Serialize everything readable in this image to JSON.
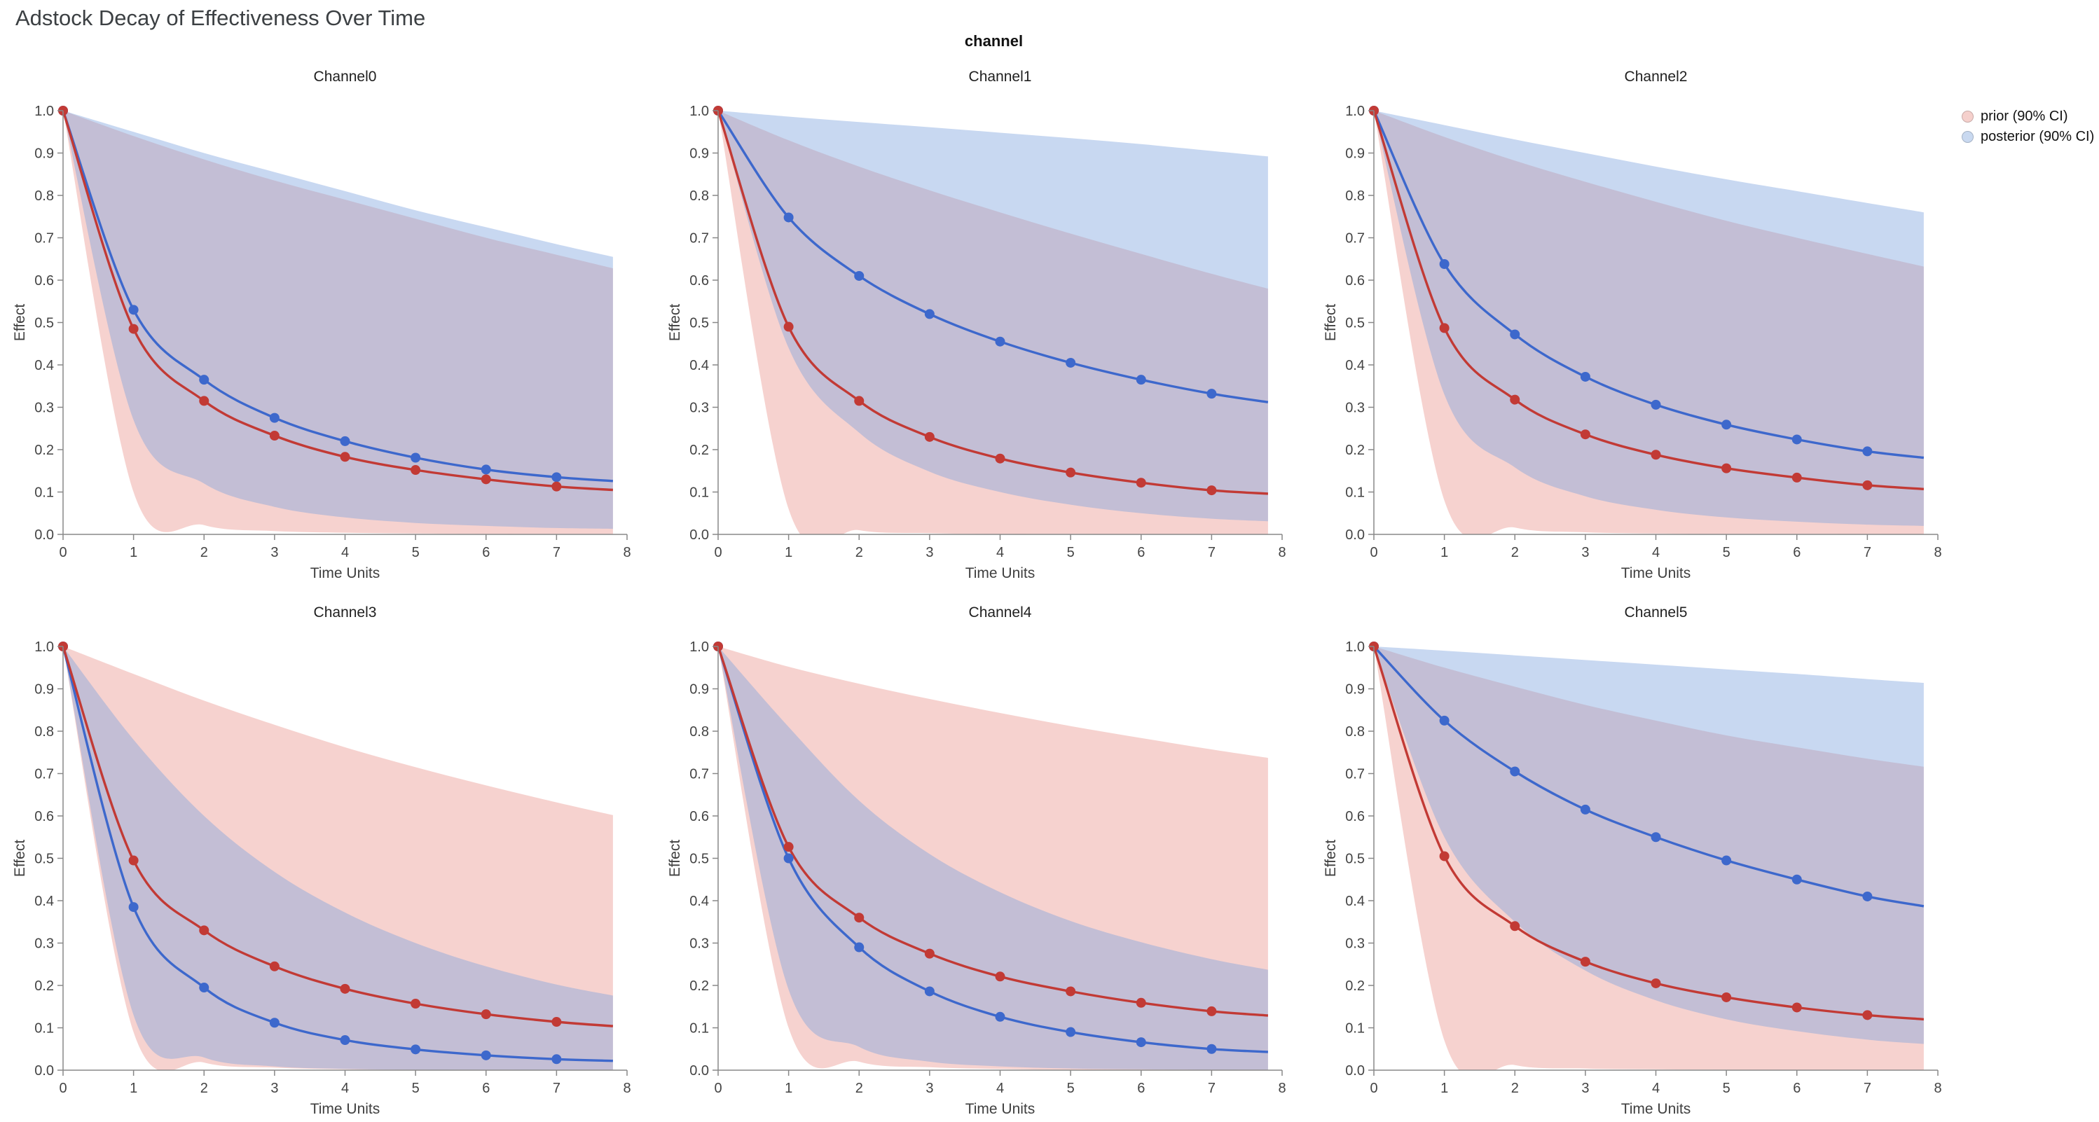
{
  "title": "Adstock Decay of Effectiveness Over Time",
  "facet_header": "channel",
  "legend": {
    "items": [
      {
        "label": "prior (90% CI)",
        "color": "#f5d0cc"
      },
      {
        "label": "posterior (90% CI)",
        "color": "#c9d9f0"
      }
    ]
  },
  "chart_data": {
    "type": "line",
    "title": "Adstock Decay of Effectiveness Over Time",
    "facet_field": "channel",
    "xlabel": "Time Units",
    "ylabel": "Effect",
    "x_range": [
      0,
      8
    ],
    "y_range": [
      0,
      1
    ],
    "x_ticks": [
      0,
      1,
      2,
      3,
      4,
      5,
      6,
      7,
      8
    ],
    "y_ticks": [
      0,
      0.1,
      0.2,
      0.3,
      0.4,
      0.5,
      0.6,
      0.7,
      0.8,
      0.9,
      1.0
    ],
    "x": [
      0,
      1,
      2,
      3,
      4,
      5,
      6,
      7,
      7.8
    ],
    "series_colors": {
      "prior": "#c23a35",
      "posterior": "#3d68cc"
    },
    "band_colors": {
      "prior": "#e88a80",
      "posterior": "#7ba3dd"
    },
    "band_opacity": {
      "prior": 0.38,
      "posterior": 0.42
    },
    "legend_entries": [
      "prior (90% CI)",
      "posterior (90% CI)"
    ],
    "facets": [
      {
        "title": "Channel0",
        "prior_mean": [
          1,
          0.485,
          0.315,
          0.233,
          0.183,
          0.152,
          0.13,
          0.113,
          0.105
        ],
        "posterior_mean": [
          1,
          0.53,
          0.365,
          0.275,
          0.22,
          0.181,
          0.153,
          0.135,
          0.126
        ],
        "prior_upper": [
          1,
          0.94,
          0.885,
          0.835,
          0.79,
          0.745,
          0.7,
          0.66,
          0.628
        ],
        "prior_lower": [
          1,
          0.1,
          0.022,
          0.008,
          0.004,
          0.002,
          0.001,
          0.001,
          0.001
        ],
        "posterior_upper": [
          1,
          0.95,
          0.9,
          0.855,
          0.81,
          0.765,
          0.725,
          0.685,
          0.655
        ],
        "posterior_lower": [
          1,
          0.27,
          0.12,
          0.065,
          0.04,
          0.027,
          0.02,
          0.015,
          0.013
        ]
      },
      {
        "title": "Channel1",
        "prior_mean": [
          1,
          0.49,
          0.315,
          0.23,
          0.179,
          0.146,
          0.122,
          0.104,
          0.096
        ],
        "posterior_mean": [
          1,
          0.748,
          0.61,
          0.52,
          0.455,
          0.405,
          0.365,
          0.332,
          0.312
        ],
        "prior_upper": [
          1,
          0.93,
          0.868,
          0.812,
          0.76,
          0.71,
          0.662,
          0.615,
          0.58
        ],
        "prior_lower": [
          1,
          0.06,
          0.01,
          0.003,
          0.001,
          0.001,
          0.0005,
          0.0005,
          0.0005
        ],
        "posterior_upper": [
          1,
          0.986,
          0.973,
          0.961,
          0.948,
          0.935,
          0.921,
          0.905,
          0.892
        ],
        "posterior_lower": [
          1,
          0.44,
          0.24,
          0.148,
          0.1,
          0.07,
          0.05,
          0.037,
          0.031
        ]
      },
      {
        "title": "Channel2",
        "prior_mean": [
          1,
          0.487,
          0.318,
          0.236,
          0.188,
          0.156,
          0.134,
          0.116,
          0.107
        ],
        "posterior_mean": [
          1,
          0.638,
          0.472,
          0.372,
          0.306,
          0.259,
          0.224,
          0.196,
          0.181
        ],
        "prior_upper": [
          1,
          0.938,
          0.882,
          0.832,
          0.785,
          0.74,
          0.7,
          0.662,
          0.632
        ],
        "prior_lower": [
          1,
          0.08,
          0.016,
          0.005,
          0.002,
          0.001,
          0.001,
          0.0005,
          0.0005
        ],
        "posterior_upper": [
          1,
          0.966,
          0.932,
          0.9,
          0.868,
          0.838,
          0.81,
          0.782,
          0.76
        ],
        "posterior_lower": [
          1,
          0.33,
          0.158,
          0.09,
          0.058,
          0.04,
          0.03,
          0.023,
          0.02
        ]
      },
      {
        "title": "Channel3",
        "prior_mean": [
          1,
          0.495,
          0.33,
          0.245,
          0.192,
          0.157,
          0.132,
          0.114,
          0.104
        ],
        "posterior_mean": [
          1,
          0.385,
          0.195,
          0.112,
          0.071,
          0.049,
          0.035,
          0.026,
          0.022
        ],
        "prior_upper": [
          1,
          0.935,
          0.872,
          0.815,
          0.762,
          0.715,
          0.672,
          0.632,
          0.602
        ],
        "prior_lower": [
          1,
          0.09,
          0.018,
          0.006,
          0.002,
          0.001,
          0.001,
          0.0005,
          0.0005
        ],
        "posterior_upper": [
          1,
          0.78,
          0.6,
          0.468,
          0.372,
          0.3,
          0.245,
          0.202,
          0.176
        ],
        "posterior_lower": [
          1,
          0.13,
          0.03,
          0.009,
          0.003,
          0.001,
          0.001,
          0.0005,
          0.0005
        ]
      },
      {
        "title": "Channel4",
        "prior_mean": [
          1,
          0.527,
          0.36,
          0.275,
          0.221,
          0.186,
          0.159,
          0.139,
          0.129
        ],
        "posterior_mean": [
          1,
          0.5,
          0.29,
          0.186,
          0.126,
          0.09,
          0.066,
          0.05,
          0.043
        ],
        "prior_upper": [
          1,
          0.952,
          0.912,
          0.876,
          0.843,
          0.812,
          0.784,
          0.757,
          0.737
        ],
        "prior_lower": [
          1,
          0.1,
          0.02,
          0.007,
          0.003,
          0.001,
          0.001,
          0.0005,
          0.0005
        ],
        "posterior_upper": [
          1,
          0.81,
          0.636,
          0.51,
          0.42,
          0.352,
          0.302,
          0.262,
          0.237
        ],
        "posterior_lower": [
          1,
          0.19,
          0.055,
          0.02,
          0.009,
          0.004,
          0.002,
          0.001,
          0.001
        ]
      },
      {
        "title": "Channel5",
        "prior_mean": [
          1,
          0.505,
          0.34,
          0.256,
          0.205,
          0.172,
          0.148,
          0.13,
          0.12
        ],
        "posterior_mean": [
          1,
          0.825,
          0.705,
          0.615,
          0.55,
          0.495,
          0.45,
          0.41,
          0.387
        ],
        "prior_upper": [
          1,
          0.95,
          0.905,
          0.862,
          0.825,
          0.79,
          0.762,
          0.735,
          0.716
        ],
        "prior_lower": [
          1,
          0.07,
          0.012,
          0.004,
          0.002,
          0.001,
          0.0005,
          0.0005,
          0.0005
        ],
        "posterior_upper": [
          1,
          0.99,
          0.979,
          0.968,
          0.957,
          0.946,
          0.935,
          0.923,
          0.914
        ],
        "posterior_lower": [
          1,
          0.55,
          0.35,
          0.235,
          0.165,
          0.12,
          0.092,
          0.072,
          0.062
        ]
      }
    ]
  }
}
